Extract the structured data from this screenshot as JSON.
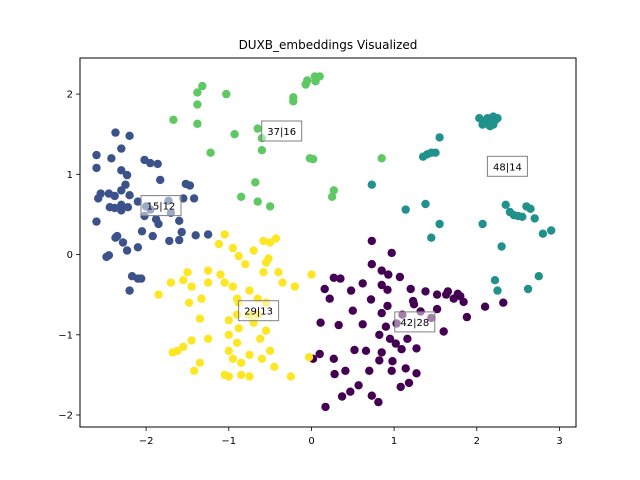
{
  "chart_data": {
    "type": "scatter",
    "title": "DUXB_embeddings Visualized",
    "xlabel": "",
    "ylabel": "",
    "xlim": [
      -2.8,
      3.2
    ],
    "ylim": [
      -2.15,
      2.45
    ],
    "xticks": [
      -2,
      -1,
      0,
      1,
      2,
      3
    ],
    "yticks": [
      -2,
      -1,
      0,
      1,
      2
    ],
    "grid": false,
    "colors": {
      "dark_purple": "#440154",
      "dark_blue": "#3b528b",
      "teal": "#21918c",
      "green": "#5ec962",
      "yellow": "#fde725"
    },
    "clusters": [
      {
        "label": "42|28",
        "color": "#440154",
        "label_pos": [
          1.25,
          -0.84
        ],
        "points": [
          [
            0.17,
            -1.9
          ],
          [
            0.37,
            -1.77
          ],
          [
            0.47,
            -1.71
          ],
          [
            0.57,
            -1.63
          ],
          [
            0.73,
            -1.76
          ],
          [
            0.81,
            -1.84
          ],
          [
            1.08,
            -1.65
          ],
          [
            1.18,
            -1.6
          ],
          [
            1.27,
            -1.48
          ],
          [
            0.02,
            -1.3
          ],
          [
            0.1,
            -1.24
          ],
          [
            0.28,
            -1.49
          ],
          [
            0.41,
            -1.45
          ],
          [
            0.52,
            -1.19
          ],
          [
            0.66,
            -1.2
          ],
          [
            0.7,
            -1.45
          ],
          [
            0.82,
            -1.32
          ],
          [
            0.85,
            -1.22
          ],
          [
            0.98,
            -1.33
          ],
          [
            1.02,
            -1.11
          ],
          [
            1.09,
            -1.18
          ],
          [
            1.16,
            -1.05
          ],
          [
            0.97,
            -1.45
          ],
          [
            1.14,
            -1.42
          ],
          [
            0.33,
            -0.88
          ],
          [
            0.5,
            -0.7
          ],
          [
            0.62,
            -0.87
          ],
          [
            0.72,
            -0.56
          ],
          [
            0.85,
            -0.73
          ],
          [
            0.92,
            -0.64
          ],
          [
            1.03,
            -0.86
          ],
          [
            1.1,
            -0.75
          ],
          [
            1.24,
            -0.62
          ],
          [
            1.32,
            -0.71
          ],
          [
            1.45,
            -0.79
          ],
          [
            1.52,
            -0.68
          ],
          [
            1.63,
            -0.5
          ],
          [
            1.72,
            -0.55
          ],
          [
            1.8,
            -0.52
          ],
          [
            1.84,
            -0.59
          ],
          [
            1.6,
            -0.96
          ],
          [
            1.88,
            -0.78
          ],
          [
            2.1,
            -0.65
          ],
          [
            2.32,
            -0.6
          ],
          [
            0.16,
            -0.43
          ],
          [
            0.22,
            -0.55
          ],
          [
            0.27,
            -0.29
          ],
          [
            0.35,
            -0.3
          ],
          [
            0.48,
            -0.45
          ],
          [
            0.62,
            -0.36
          ],
          [
            0.73,
            -0.12
          ],
          [
            0.73,
            0.17
          ],
          [
            0.85,
            -0.2
          ],
          [
            0.85,
            -0.38
          ],
          [
            0.93,
            -0.25
          ],
          [
            0.92,
            -0.44
          ],
          [
            0.97,
            0.02
          ],
          [
            1.07,
            -0.28
          ],
          [
            1.2,
            -0.43
          ],
          [
            1.23,
            -0.58
          ],
          [
            1.38,
            -0.46
          ],
          [
            1.52,
            -0.5
          ],
          [
            1.65,
            -0.46
          ],
          [
            1.77,
            -0.49
          ],
          [
            0.11,
            -0.85
          ],
          [
            0.27,
            -1.3
          ],
          [
            0.82,
            -1.0
          ],
          [
            0.9,
            -0.9
          ],
          [
            0.95,
            -1.05
          ],
          [
            1.27,
            -1.17
          ]
        ]
      },
      {
        "label": "15|12",
        "color": "#3b528b",
        "label_pos": [
          -1.82,
          0.61
        ],
        "points": [
          [
            -2.6,
            1.24
          ],
          [
            -2.6,
            1.08
          ],
          [
            -2.37,
            1.52
          ],
          [
            -2.3,
            1.32
          ],
          [
            -2.2,
            1.48
          ],
          [
            -2.42,
            1.2
          ],
          [
            -2.3,
            1.05
          ],
          [
            -2.23,
            0.99
          ],
          [
            -2.58,
            0.7
          ],
          [
            -2.55,
            0.76
          ],
          [
            -2.45,
            0.76
          ],
          [
            -2.44,
            0.59
          ],
          [
            -2.38,
            0.73
          ],
          [
            -2.3,
            0.8
          ],
          [
            -2.25,
            0.87
          ],
          [
            -2.2,
            0.74
          ],
          [
            -2.38,
            0.58
          ],
          [
            -2.3,
            0.62
          ],
          [
            -2.22,
            0.59
          ],
          [
            -2.3,
            0.55
          ],
          [
            -2.02,
            0.48
          ],
          [
            -1.95,
            0.56
          ],
          [
            -1.88,
            0.44
          ],
          [
            -1.95,
            1.14
          ],
          [
            -2.02,
            1.18
          ],
          [
            -1.86,
            1.13
          ],
          [
            -1.83,
            0.93
          ],
          [
            -1.73,
            0.67
          ],
          [
            -1.7,
            0.52
          ],
          [
            -1.55,
            0.7
          ],
          [
            -1.52,
            0.88
          ],
          [
            -1.47,
            0.86
          ],
          [
            -1.42,
            0.7
          ],
          [
            -2.1,
            0.66
          ],
          [
            -2.05,
            0.29
          ],
          [
            -2.1,
            0.09
          ],
          [
            -2.17,
            -0.27
          ],
          [
            -2.23,
            0.05
          ],
          [
            -2.28,
            0.15
          ],
          [
            -2.35,
            0.23
          ],
          [
            -2.37,
            0.21
          ],
          [
            -2.45,
            -0.01
          ],
          [
            -2.48,
            -0.03
          ],
          [
            -2.6,
            0.41
          ],
          [
            -2.2,
            -0.45
          ],
          [
            -2.1,
            -0.3
          ],
          [
            -2.06,
            -0.3
          ],
          [
            -1.92,
            0.23
          ],
          [
            -1.72,
            0.17
          ],
          [
            -1.6,
            0.18
          ],
          [
            -1.57,
            0.28
          ],
          [
            -1.4,
            0.24
          ],
          [
            -1.25,
            0.25
          ],
          [
            -2.0,
            0.6
          ],
          [
            -1.85,
            0.38
          ],
          [
            -1.6,
            0.42
          ]
        ]
      },
      {
        "label": "37|16",
        "color": "#5ec962",
        "label_pos": [
          -0.36,
          1.54
        ],
        "points": [
          [
            -1.32,
            2.1
          ],
          [
            -1.38,
            2.02
          ],
          [
            -1.38,
            1.87
          ],
          [
            -1.67,
            1.68
          ],
          [
            -1.38,
            1.63
          ],
          [
            -1.22,
            1.27
          ],
          [
            -0.93,
            1.5
          ],
          [
            -1.03,
            2.0
          ],
          [
            -0.65,
            1.57
          ],
          [
            -0.6,
            1.3
          ],
          [
            -0.6,
            1.45
          ],
          [
            -0.22,
            1.91
          ],
          [
            -0.22,
            1.96
          ],
          [
            -0.07,
            2.12
          ],
          [
            -0.05,
            2.17
          ],
          [
            0.04,
            2.22
          ],
          [
            0.1,
            2.22
          ],
          [
            0.05,
            2.16
          ],
          [
            -0.02,
            1.2
          ],
          [
            0.02,
            1.19
          ],
          [
            -0.68,
            0.9
          ],
          [
            -0.85,
            0.72
          ],
          [
            -0.65,
            0.66
          ],
          [
            -0.5,
            0.6
          ],
          [
            0.25,
            0.72
          ],
          [
            0.27,
            0.8
          ],
          [
            0.85,
            1.2
          ]
        ]
      },
      {
        "label": "48|14",
        "color": "#21918c",
        "label_pos": [
          2.37,
          1.1
        ],
        "points": [
          [
            2.03,
            1.7
          ],
          [
            2.08,
            1.65
          ],
          [
            2.13,
            1.7
          ],
          [
            2.17,
            1.67
          ],
          [
            2.2,
            1.66
          ],
          [
            2.2,
            1.72
          ],
          [
            2.23,
            1.68
          ],
          [
            2.25,
            1.7
          ],
          [
            2.2,
            1.62
          ],
          [
            2.1,
            1.67
          ],
          [
            2.07,
            1.62
          ],
          [
            2.16,
            1.6
          ],
          [
            1.4,
            1.25
          ],
          [
            1.45,
            1.27
          ],
          [
            1.5,
            1.27
          ],
          [
            1.55,
            1.46
          ],
          [
            1.35,
            1.22
          ],
          [
            1.38,
            0.63
          ],
          [
            1.14,
            0.56
          ],
          [
            0.73,
            0.87
          ],
          [
            1.45,
            0.21
          ],
          [
            1.55,
            0.38
          ],
          [
            2.07,
            0.38
          ],
          [
            2.3,
            0.1
          ],
          [
            2.35,
            0.62
          ],
          [
            2.4,
            0.53
          ],
          [
            2.45,
            0.49
          ],
          [
            2.5,
            0.48
          ],
          [
            2.55,
            0.47
          ],
          [
            2.6,
            0.6
          ],
          [
            2.65,
            0.57
          ],
          [
            2.7,
            0.45
          ],
          [
            2.8,
            0.26
          ],
          [
            2.9,
            0.3
          ],
          [
            2.62,
            -0.43
          ],
          [
            2.75,
            -0.27
          ],
          [
            2.22,
            -0.32
          ],
          [
            2.25,
            -0.45
          ]
        ]
      },
      {
        "label": "29|13",
        "color": "#fde725",
        "label_pos": [
          -0.64,
          -0.7
        ],
        "points": [
          [
            -1.05,
            0.25
          ],
          [
            -1.12,
            0.13
          ],
          [
            -0.95,
            0.08
          ],
          [
            -0.88,
            -0.02
          ],
          [
            -0.8,
            -0.12
          ],
          [
            -0.7,
            0.05
          ],
          [
            -0.58,
            0.17
          ],
          [
            -0.5,
            0.15
          ],
          [
            -0.43,
            0.2
          ],
          [
            -0.55,
            -0.1
          ],
          [
            -0.58,
            -0.22
          ],
          [
            -0.52,
            -0.05
          ],
          [
            -0.4,
            -0.22
          ],
          [
            -0.35,
            -0.35
          ],
          [
            -0.2,
            -0.4
          ],
          [
            0.0,
            -0.25
          ],
          [
            -1.5,
            -0.22
          ],
          [
            -1.55,
            -0.32
          ],
          [
            -1.45,
            -0.4
          ],
          [
            -1.25,
            -0.2
          ],
          [
            -1.25,
            -0.35
          ],
          [
            -1.7,
            -0.35
          ],
          [
            -1.85,
            -0.5
          ],
          [
            -1.48,
            -0.6
          ],
          [
            -1.33,
            -0.55
          ],
          [
            -1.35,
            -0.8
          ],
          [
            -1.1,
            -0.25
          ],
          [
            -1.05,
            -0.35
          ],
          [
            -0.95,
            -0.4
          ],
          [
            -0.9,
            -0.55
          ],
          [
            -0.75,
            -0.45
          ],
          [
            -0.65,
            -0.55
          ],
          [
            -0.55,
            -0.6
          ],
          [
            -0.75,
            -0.75
          ],
          [
            -0.9,
            -0.75
          ],
          [
            -1.0,
            -0.82
          ],
          [
            -0.88,
            -0.92
          ],
          [
            -0.7,
            -0.85
          ],
          [
            -0.55,
            -0.95
          ],
          [
            -0.62,
            -1.05
          ],
          [
            -0.9,
            -1.1
          ],
          [
            -1.0,
            -1.0
          ],
          [
            -1.25,
            -1.05
          ],
          [
            -1.45,
            -1.07
          ],
          [
            -1.55,
            -1.15
          ],
          [
            -1.62,
            -1.2
          ],
          [
            -1.68,
            -1.22
          ],
          [
            -1.42,
            -1.45
          ],
          [
            -1.35,
            -1.35
          ],
          [
            -1.0,
            -1.2
          ],
          [
            -0.95,
            -1.3
          ],
          [
            -0.85,
            -1.35
          ],
          [
            -0.75,
            -1.25
          ],
          [
            -0.6,
            -1.3
          ],
          [
            -0.5,
            -1.2
          ],
          [
            -0.45,
            -1.4
          ],
          [
            -0.85,
            -1.5
          ],
          [
            -0.75,
            -1.52
          ],
          [
            -1.0,
            -1.52
          ],
          [
            -1.05,
            -1.5
          ],
          [
            -0.25,
            -1.52
          ],
          [
            -0.03,
            -1.28
          ],
          [
            -0.88,
            -0.6
          ],
          [
            -0.65,
            -0.75
          ]
        ]
      }
    ]
  }
}
